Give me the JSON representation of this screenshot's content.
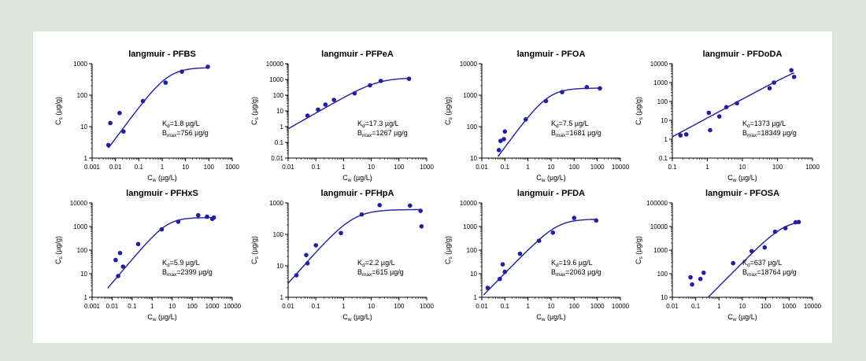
{
  "chart_data": [
    {
      "type": "scatter",
      "title": "langmuir - PFBS",
      "xlabel": "C",
      "xlabel_sub": "w",
      "xlabel_unit": " (µg/L)",
      "ylabel": "C",
      "ylabel_sub": "s",
      "ylabel_unit": " (µg/g)",
      "x_scale": "log",
      "y_scale": "log",
      "xlim": [
        0.001,
        1000
      ],
      "ylim": [
        1,
        1000
      ],
      "x_ticks": [
        "0.001",
        "0.01",
        "0.1",
        "1",
        "10",
        "100",
        "1000"
      ],
      "y_ticks": [
        "1",
        "10",
        "100",
        "1000"
      ],
      "kd_label": "K",
      "kd_sub": "d",
      "kd_value": "=1.8 µg/L",
      "bmax_label": "B",
      "bmax_sub": "max",
      "bmax_value": "=756 µg/g",
      "points": [
        [
          0.005,
          2.6
        ],
        [
          0.006,
          13
        ],
        [
          0.015,
          27
        ],
        [
          0.022,
          7
        ],
        [
          0.15,
          65
        ],
        [
          1.4,
          250
        ],
        [
          7,
          560
        ],
        [
          90,
          800
        ]
      ],
      "fit": {
        "Kd": 1.8,
        "Bmax": 756,
        "x_range": [
          0.005,
          90
        ]
      }
    },
    {
      "type": "scatter",
      "title": "langmuir - PFPeA",
      "xlabel": "C",
      "xlabel_sub": "w",
      "xlabel_unit": " (µg/L)",
      "ylabel": "C",
      "ylabel_sub": "s",
      "ylabel_unit": " (µg/g)",
      "x_scale": "log",
      "y_scale": "log",
      "xlim": [
        0.01,
        1000
      ],
      "ylim": [
        0.01,
        10000
      ],
      "x_ticks": [
        "0.01",
        "0.1",
        "1",
        "10",
        "100",
        "1000"
      ],
      "y_ticks": [
        "0.01",
        "0.1",
        "1",
        "10",
        "100",
        "1000",
        "10000"
      ],
      "kd_label": "K",
      "kd_sub": "d",
      "kd_value": "=17.3 µg/L",
      "bmax_label": "B",
      "bmax_sub": "max",
      "bmax_value": "=1267 µg/g",
      "points": [
        [
          0.05,
          5
        ],
        [
          0.12,
          12
        ],
        [
          0.22,
          25
        ],
        [
          0.45,
          50
        ],
        [
          2.5,
          130
        ],
        [
          9,
          420
        ],
        [
          22,
          800
        ],
        [
          230,
          1100
        ]
      ],
      "fit": {
        "Kd": 17.3,
        "Bmax": 1267,
        "x_range": [
          0.01,
          230
        ]
      }
    },
    {
      "type": "scatter",
      "title": "langmuir - PFOA",
      "xlabel": "C",
      "xlabel_sub": "w",
      "xlabel_unit": " (µg/L)",
      "ylabel": "C",
      "ylabel_sub": "s",
      "ylabel_unit": " (µg/g)",
      "x_scale": "log",
      "y_scale": "log",
      "xlim": [
        0.01,
        10000
      ],
      "ylim": [
        10,
        10000
      ],
      "x_ticks": [
        "0.01",
        "0.1",
        "1",
        "10",
        "100",
        "1000",
        "10000"
      ],
      "y_ticks": [
        "10",
        "100",
        "1000",
        "10000"
      ],
      "kd_label": "K",
      "kd_sub": "d",
      "kd_value": "=7.5 µg/L",
      "bmax_label": "B",
      "bmax_sub": "max",
      "bmax_value": "=1681 µg/g",
      "points": [
        [
          0.055,
          18
        ],
        [
          0.065,
          35
        ],
        [
          0.09,
          40
        ],
        [
          0.1,
          70
        ],
        [
          0.8,
          170
        ],
        [
          6,
          650
        ],
        [
          30,
          1250
        ],
        [
          350,
          1800
        ],
        [
          1300,
          1650
        ]
      ],
      "fit": {
        "Kd": 7.5,
        "Bmax": 1681,
        "x_range": [
          0.05,
          1300
        ]
      }
    },
    {
      "type": "scatter",
      "title": "langmuir - PFDoDA",
      "xlabel": "C",
      "xlabel_sub": "w",
      "xlabel_unit": " (µg/L)",
      "ylabel": "C",
      "ylabel_sub": "s",
      "ylabel_unit": " (µg/g)",
      "x_scale": "log",
      "y_scale": "log",
      "xlim": [
        0.1,
        1000
      ],
      "ylim": [
        0.1,
        10000
      ],
      "x_ticks": [
        "0.1",
        "1",
        "10",
        "100",
        "1000"
      ],
      "y_ticks": [
        "0.1",
        "1",
        "10",
        "100",
        "1000",
        "10000"
      ],
      "kd_label": "K",
      "kd_sub": "d",
      "kd_value": "=1373 µg/L",
      "bmax_label": "B",
      "bmax_sub": "max",
      "bmax_value": "=18349 µg/g",
      "points": [
        [
          0.17,
          1.6
        ],
        [
          0.25,
          1.8
        ],
        [
          1.1,
          25
        ],
        [
          1.2,
          3
        ],
        [
          2.2,
          16
        ],
        [
          3.5,
          50
        ],
        [
          7,
          80
        ],
        [
          60,
          500
        ],
        [
          80,
          1000
        ],
        [
          250,
          4500
        ],
        [
          300,
          2000
        ]
      ],
      "fit": {
        "Kd": 1373,
        "Bmax": 18349,
        "x_range": [
          0.1,
          300
        ]
      }
    },
    {
      "type": "scatter",
      "title": "langmuir - PFHxS",
      "xlabel": "C",
      "xlabel_sub": "w",
      "xlabel_unit": " (µg/L)",
      "ylabel": "C",
      "ylabel_sub": "s",
      "ylabel_unit": " (µg/g)",
      "x_scale": "log",
      "y_scale": "log",
      "xlim": [
        0.001,
        10000
      ],
      "ylim": [
        1,
        10000
      ],
      "x_ticks": [
        "0.001",
        "0.01",
        "0.1",
        "1",
        "10",
        "100",
        "1000",
        "10000"
      ],
      "y_ticks": [
        "1",
        "10",
        "100",
        "1000",
        "10000"
      ],
      "kd_label": "K",
      "kd_sub": "d",
      "kd_value": "=5.9 µg/L",
      "bmax_label": "B",
      "bmax_sub": "max",
      "bmax_value": "=2399 µg/g",
      "points": [
        [
          0.015,
          38
        ],
        [
          0.02,
          8
        ],
        [
          0.025,
          75
        ],
        [
          0.035,
          20
        ],
        [
          0.2,
          180
        ],
        [
          3,
          750
        ],
        [
          20,
          1600
        ],
        [
          200,
          3000
        ],
        [
          550,
          2600
        ],
        [
          1000,
          2100
        ],
        [
          1200,
          2400
        ]
      ],
      "fit": {
        "Kd": 5.9,
        "Bmax": 2399,
        "x_range": [
          0.006,
          1200
        ]
      }
    },
    {
      "type": "scatter",
      "title": "langmuir - PFHpA",
      "xlabel": "C",
      "xlabel_sub": "w",
      "xlabel_unit": " (µg/L)",
      "ylabel": "C",
      "ylabel_sub": "s",
      "ylabel_unit": " (µg/g)",
      "x_scale": "log",
      "y_scale": "log",
      "xlim": [
        0.01,
        1000
      ],
      "ylim": [
        1,
        1000
      ],
      "x_ticks": [
        "0.01",
        "0.1",
        "1",
        "10",
        "100",
        "1000"
      ],
      "y_ticks": [
        "1",
        "10",
        "100",
        "1000"
      ],
      "kd_label": "K",
      "kd_sub": "d",
      "kd_value": "=2.2 µg/L",
      "bmax_label": "B",
      "bmax_sub": "max",
      "bmax_value": "=615 µg/g",
      "points": [
        [
          0.02,
          5
        ],
        [
          0.045,
          22
        ],
        [
          0.05,
          12
        ],
        [
          0.1,
          45
        ],
        [
          0.8,
          110
        ],
        [
          4.5,
          430
        ],
        [
          20,
          850
        ],
        [
          250,
          820
        ],
        [
          600,
          560
        ],
        [
          650,
          180
        ]
      ],
      "fit": {
        "Kd": 2.2,
        "Bmax": 615,
        "x_range": [
          0.01,
          650
        ]
      }
    },
    {
      "type": "scatter",
      "title": "langmuir - PFDA",
      "xlabel": "C",
      "xlabel_sub": "w",
      "xlabel_unit": " (µg/L)",
      "ylabel": "C",
      "ylabel_sub": "s",
      "ylabel_unit": " (µg/g)",
      "x_scale": "log",
      "y_scale": "log",
      "xlim": [
        0.01,
        10000
      ],
      "ylim": [
        1,
        10000
      ],
      "x_ticks": [
        "0.01",
        "0.1",
        "1",
        "10",
        "100",
        "1000",
        "10000"
      ],
      "y_ticks": [
        "1",
        "10",
        "100",
        "1000",
        "10000"
      ],
      "kd_label": "K",
      "kd_sub": "d",
      "kd_value": "=19.6 µg/L",
      "bmax_label": "B",
      "bmax_sub": "max",
      "bmax_value": "=2063 µg/g",
      "points": [
        [
          0.018,
          2.5
        ],
        [
          0.06,
          6
        ],
        [
          0.08,
          25
        ],
        [
          0.1,
          12
        ],
        [
          0.45,
          70
        ],
        [
          3,
          250
        ],
        [
          12,
          550
        ],
        [
          100,
          2300
        ],
        [
          900,
          1800
        ]
      ],
      "fit": {
        "Kd": 19.6,
        "Bmax": 2063,
        "x_range": [
          0.012,
          1000
        ]
      }
    },
    {
      "type": "scatter",
      "title": "langmuir - PFOSA",
      "xlabel": "C",
      "xlabel_sub": "w",
      "xlabel_unit": " (µg/L)",
      "ylabel": "C",
      "ylabel_sub": "s",
      "ylabel_unit": " (µg/g)",
      "x_scale": "log",
      "y_scale": "log",
      "xlim": [
        0.01,
        10000
      ],
      "ylim": [
        10,
        100000
      ],
      "x_ticks": [
        "0.01",
        "0.1",
        "1",
        "10",
        "100",
        "1000",
        "10000"
      ],
      "y_ticks": [
        "10",
        "100",
        "1000",
        "10000",
        "100000"
      ],
      "kd_label": "K",
      "kd_sub": "d",
      "kd_value": "=637 µg/L",
      "bmax_label": "B",
      "bmax_sub": "max",
      "bmax_value": "=18764 µg/g",
      "points": [
        [
          0.06,
          70
        ],
        [
          0.07,
          35
        ],
        [
          0.16,
          60
        ],
        [
          0.22,
          110
        ],
        [
          4,
          280
        ],
        [
          25,
          900
        ],
        [
          90,
          1300
        ],
        [
          250,
          6000
        ],
        [
          700,
          8500
        ],
        [
          1900,
          15000
        ],
        [
          2600,
          15500
        ]
      ],
      "fit": {
        "Kd": 637,
        "Bmax": 18764,
        "x_range": [
          0.03,
          2600
        ]
      }
    }
  ],
  "colors": {
    "series": "#1f1fa0",
    "axis": "#000000",
    "background": "#dde6dd",
    "panel": "#ffffff"
  }
}
